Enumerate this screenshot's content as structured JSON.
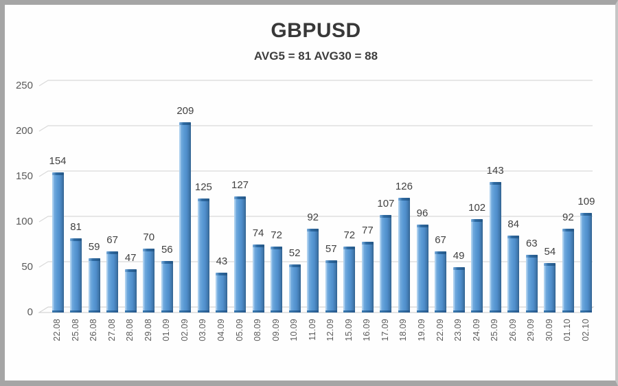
{
  "chart_data": {
    "type": "bar",
    "title": "GBPUSD",
    "subtitle": "AVG5 = 81 AVG30 = 88",
    "categories": [
      "22.08",
      "25.08",
      "26.08",
      "27.08",
      "28.08",
      "29.08",
      "01.09",
      "02.09",
      "03.09",
      "04.09",
      "05.09",
      "08.09",
      "09.09",
      "10.09",
      "11.09",
      "12.09",
      "15.09",
      "16.09",
      "17.09",
      "18.09",
      "19.09",
      "22.09",
      "23.09",
      "24.09",
      "25.09",
      "26.09",
      "29.09",
      "30.09",
      "01.10",
      "02.10"
    ],
    "values": [
      154,
      81,
      59,
      67,
      47,
      70,
      56,
      209,
      125,
      43,
      127,
      74,
      72,
      52,
      92,
      57,
      72,
      77,
      107,
      126,
      96,
      67,
      49,
      102,
      143,
      84,
      63,
      54,
      92,
      109
    ],
    "ylim": [
      0,
      250
    ],
    "y_ticks": [
      0,
      50,
      100,
      150,
      200,
      250
    ],
    "xlabel": "",
    "ylabel": "",
    "legend_position": "none",
    "grid": true,
    "data_labels": true,
    "style_3d": true,
    "colors": {
      "bar": "#5b9bd5",
      "bar_highlight": "#aacfee",
      "bar_shadow": "#2f5f8d",
      "gridline": "#d9d9d9",
      "axis_label": "#595959",
      "value_label": "#404040",
      "title": "#383838",
      "frame": "#a5a5a5"
    }
  }
}
